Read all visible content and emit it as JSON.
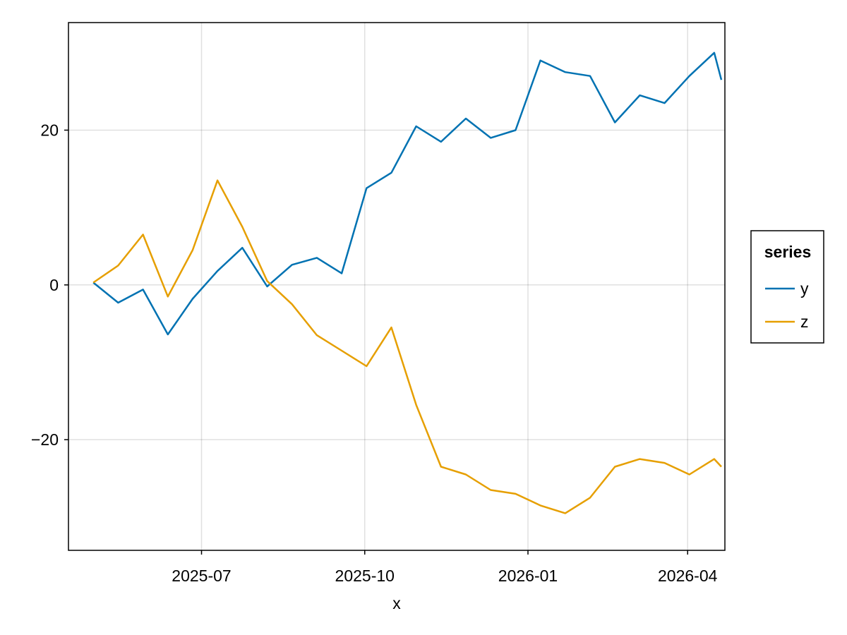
{
  "chart_data": {
    "type": "line",
    "title": "",
    "xlabel": "x",
    "ylabel": "",
    "x_axis_kind": "date",
    "xlim": [
      "2025-04-17",
      "2026-04-22"
    ],
    "ylim": [
      -34.3,
      33.9
    ],
    "x_ticks": [
      "2025-07-01",
      "2025-10-01",
      "2026-01-01",
      "2026-04-01"
    ],
    "x_tick_labels": [
      "2025-07",
      "2025-10",
      "2026-01",
      "2026-04"
    ],
    "y_ticks": [
      -20,
      0,
      20
    ],
    "y_tick_labels": [
      "−20",
      "0",
      "20"
    ],
    "grid": true,
    "legend": {
      "title": "series",
      "position": "right"
    },
    "x": [
      "2025-05-01",
      "2025-05-15",
      "2025-05-29",
      "2025-06-12",
      "2025-06-26",
      "2025-07-10",
      "2025-07-24",
      "2025-08-07",
      "2025-08-21",
      "2025-09-04",
      "2025-09-18",
      "2025-10-02",
      "2025-10-16",
      "2025-10-30",
      "2025-11-13",
      "2025-11-27",
      "2025-12-11",
      "2025-12-25",
      "2026-01-08",
      "2026-01-22",
      "2026-02-05",
      "2026-02-19",
      "2026-03-05",
      "2026-03-19",
      "2026-04-02",
      "2026-04-16",
      "2026-04-20"
    ],
    "series": [
      {
        "name": "y",
        "color": "#0072B2",
        "values": [
          0.3,
          -2.3,
          -0.6,
          -6.4,
          -1.8,
          1.8,
          4.8,
          -0.2,
          2.6,
          3.5,
          1.5,
          12.5,
          14.5,
          20.5,
          18.5,
          21.5,
          19.0,
          20.0,
          29.0,
          27.5,
          27.0,
          21.0,
          24.5,
          23.5,
          27.0,
          30.0,
          26.5
        ]
      },
      {
        "name": "z",
        "color": "#E69F00",
        "values": [
          0.3,
          2.5,
          6.5,
          -1.5,
          4.5,
          13.5,
          7.5,
          0.5,
          -2.5,
          -6.5,
          -8.5,
          -10.5,
          -5.5,
          -15.5,
          -23.5,
          -24.5,
          -26.5,
          -27.0,
          -28.5,
          -29.5,
          -27.5,
          -23.5,
          -22.5,
          -23.0,
          -24.5,
          -22.5,
          -23.5
        ]
      }
    ]
  }
}
